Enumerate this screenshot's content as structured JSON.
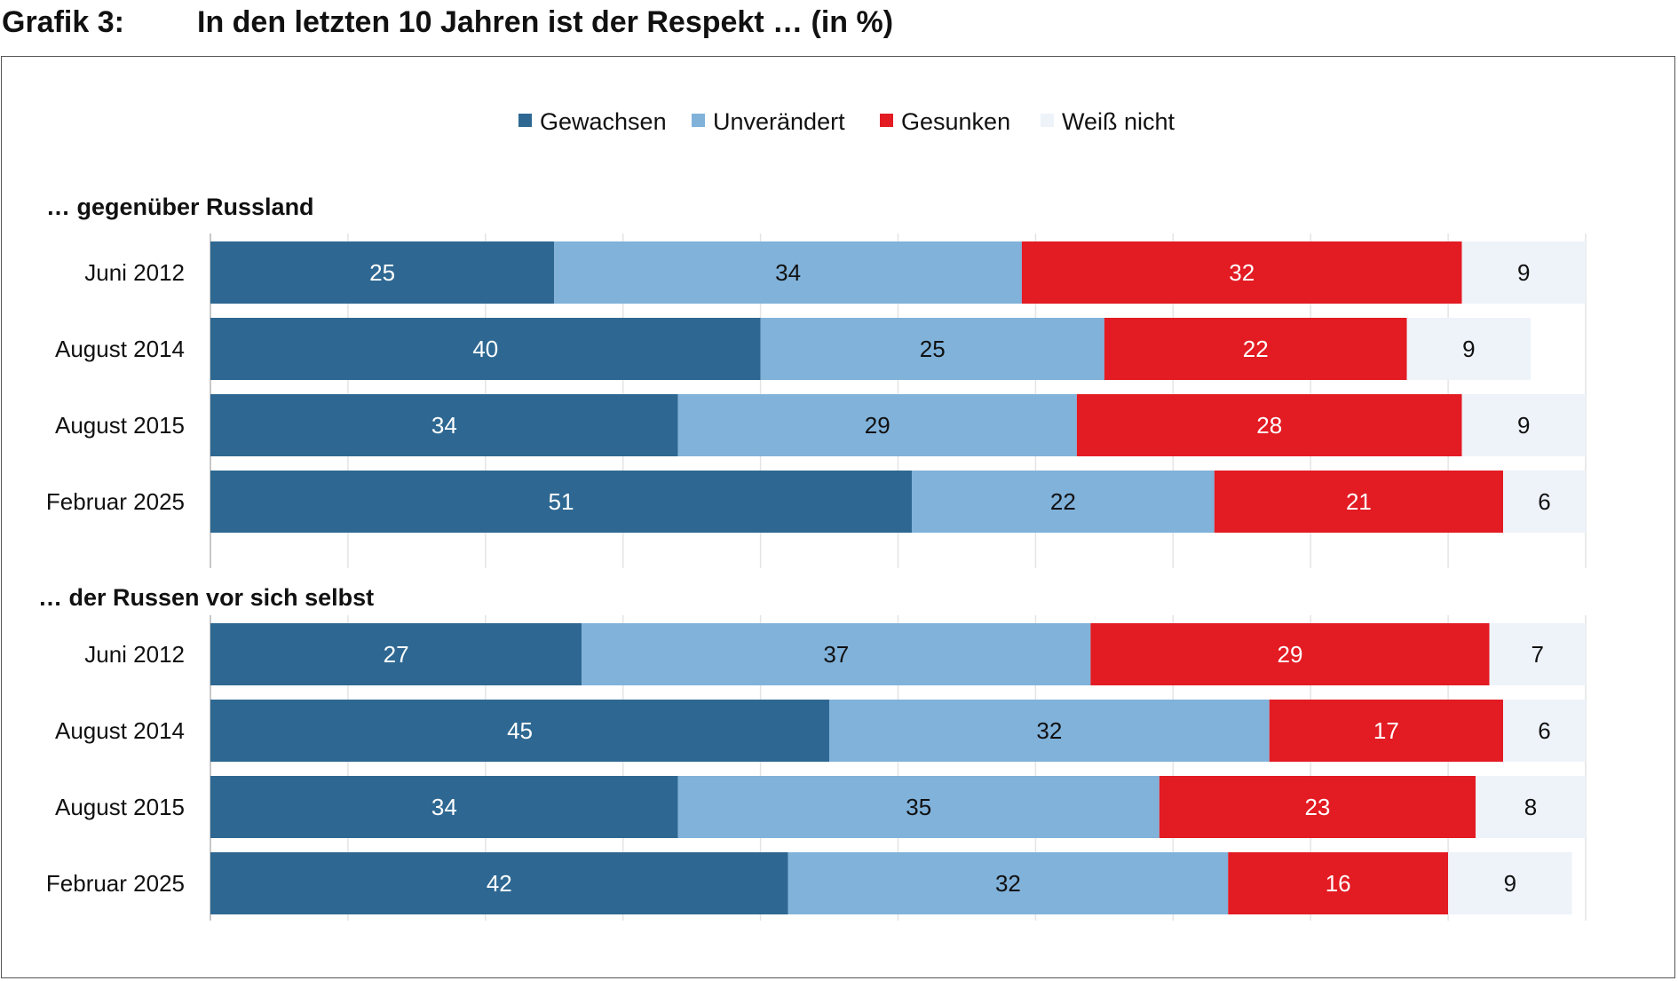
{
  "header": {
    "figure_label": "Grafik 3:",
    "title": "In den letzten 10 Jahren ist der Respekt … (in %)"
  },
  "chart_data": {
    "type": "bar",
    "orientation": "horizontal",
    "stacked": true,
    "normalized": "percent",
    "xlim": [
      0,
      100
    ],
    "grid": true,
    "legend": {
      "position": "top-center",
      "entries": [
        {
          "name": "Gewachsen",
          "color": "#2e6892"
        },
        {
          "name": "Unverändert",
          "color": "#80b2da"
        },
        {
          "name": "Gesunken",
          "color": "#e31b23"
        },
        {
          "name": "Weiß nicht",
          "color": "#eef3fa"
        }
      ]
    },
    "value_label_colors": [
      "#ffffff",
      "#111111",
      "#ffffff",
      "#111111"
    ],
    "panels": [
      {
        "title": "… gegenüber Russland",
        "categories": [
          "Juni 2012",
          "August 2014",
          "August 2015",
          "Februar 2025"
        ],
        "series": [
          {
            "name": "Gewachsen",
            "values": [
              25,
              40,
              34,
              51
            ]
          },
          {
            "name": "Unverändert",
            "values": [
              34,
              25,
              29,
              22
            ]
          },
          {
            "name": "Gesunken",
            "values": [
              32,
              22,
              28,
              21
            ]
          },
          {
            "name": "Weiß nicht",
            "values": [
              9,
              9,
              9,
              6
            ]
          }
        ]
      },
      {
        "title": "… der Russen vor sich selbst",
        "categories": [
          "Juni 2012",
          "August 2014",
          "August 2015",
          "Februar 2025"
        ],
        "series": [
          {
            "name": "Gewachsen",
            "values": [
              27,
              45,
              34,
              42
            ]
          },
          {
            "name": "Unverändert",
            "values": [
              37,
              32,
              35,
              32
            ]
          },
          {
            "name": "Gesunken",
            "values": [
              29,
              17,
              23,
              16
            ]
          },
          {
            "name": "Weiß nicht",
            "values": [
              7,
              6,
              8,
              9
            ]
          }
        ]
      }
    ]
  }
}
